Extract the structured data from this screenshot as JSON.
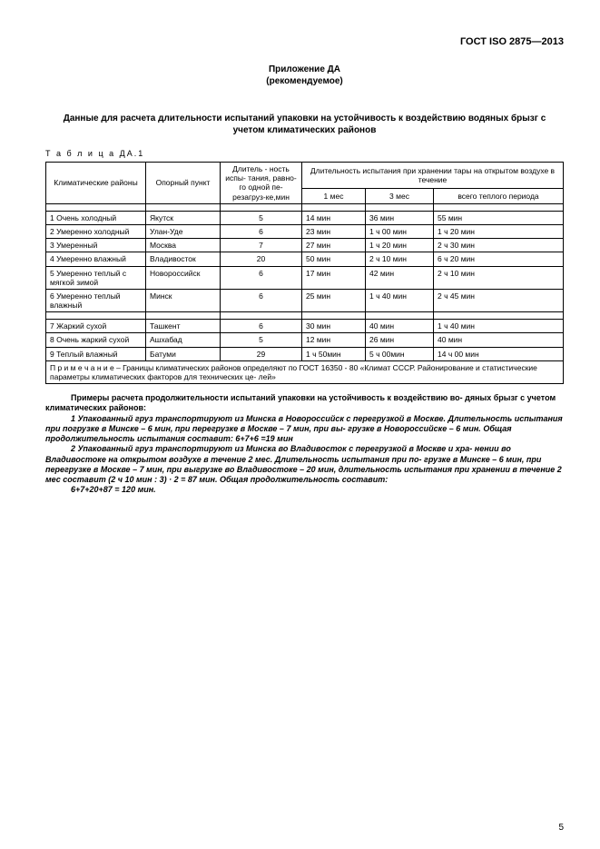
{
  "header": {
    "doc_id": "ГОСТ ISO 2875—2013",
    "appendix_label": "Приложение ДА",
    "appendix_sub": "(рекомендуемое)",
    "title": "Данные для расчета  длительности  испытаний  упаковки на устойчивость к воздействию водяных брызг  с учетом климатических районов",
    "table_label": "Т а б л и ц а   ДА.1"
  },
  "table": {
    "columns": {
      "zone": "Климатические районы",
      "point": "Опорный пункт",
      "duration": "Длитель - ность испы- тания, равно- го одной пе- резагруз-ке,мин",
      "storage_header": "Длительность испытания при хранении тары на открытом воздухе в течение",
      "m1": "1 мес",
      "m3": "3 мес",
      "warm": "всего теплого периода"
    },
    "rows": [
      {
        "n": "1",
        "zone": "Очень холодный",
        "point": "Якутск",
        "dur": "5",
        "m1": "14 мин",
        "m3": "36 мин",
        "warm": "55 мин"
      },
      {
        "n": "2",
        "zone": "Умеренно холодный",
        "point": "Улан-Уде",
        "dur": "6",
        "m1": "23 мин",
        "m3": "1 ч 00 мин",
        "warm": "1 ч 20 мин"
      },
      {
        "n": "3",
        "zone": "Умеренный",
        "point": "Москва",
        "dur": "7",
        "m1": "27 мин",
        "m3": "1 ч 20 мин",
        "warm": "2 ч 30 мин"
      },
      {
        "n": "4",
        "zone": "Умеренно влажный",
        "point": "Владивосток",
        "dur": "20",
        "m1": "50 мин",
        "m3": "2 ч 10 мин",
        "warm": "6 ч 20 мин"
      },
      {
        "n": "5",
        "zone": "Умеренно теплый с мягкой зимой",
        "point": "Новороссийск",
        "dur": "6",
        "m1": "17 мин",
        "m3": "42 мин",
        "warm": "2 ч 10 мин"
      },
      {
        "n": "6",
        "zone": "Умеренно теплый влажный",
        "point": "Минск",
        "dur": "6",
        "m1": "25 мин",
        "m3": "1 ч 40 мин",
        "warm": "2 ч 45 мин"
      },
      {
        "n": "7",
        "zone": "Жаркий сухой",
        "point": "Ташкент",
        "dur": "6",
        "m1": "30 мин",
        "m3": "40 мин",
        "warm": "1 ч 40 мин"
      },
      {
        "n": "8",
        "zone": "Очень жаркий сухой",
        "point": "Ашхабад",
        "dur": "5",
        "m1": "12 мин",
        "m3": "26 мин",
        "warm": "40 мин"
      },
      {
        "n": "9",
        "zone": "Теплый влажный",
        "point": "Батуми",
        "dur": "29",
        "m1": "1 ч  50мин",
        "m3": "5 ч 00мин",
        "warm": "14 ч 00 мин"
      }
    ],
    "note": "П р и м е ч а н и е – Границы климатических районов определяют по ГОСТ  16350 - 80 «Климат СССР. Районирование и статистические  параметры климатических факторов для технических це- лей»"
  },
  "examples": {
    "lead": "Примеры расчета продолжительности испытаний упаковки на устойчивость к воздействию во- дяных брызг с учетом климатических районов:",
    "p1": "1 Упакованный груз транспортируют из Минска в Новороссийск  с перегрузкой в Москве. Длительность испытания  при  погрузке в Минске – 6 мин, при перегрузке в Москве – 7 мин, при   вы- грузке в Новороссийске – 6 мин. Общая продолжительность  испытания  составит:  6+7+6 =19 мин",
    "p2": "2 Упакованный груз транспортируют из Минска во Владивосток с перегрузкой в Москве и хра- нении во Владивостоке на открытом воздухе в течение 2 мес.  Длительность испытания при по- грузке в Минске – 6 мин, при  перегрузке в Москве – 7 мин, при выгрузке во Владивостоке – 20 мин, длительность испытания при хранении в течение 2 мес составит  (2 ч 10 мин : 3) · 2 = 87 мин.  Общая продолжительность составит:",
    "p3": "6+7+20+87 = 120  мин."
  },
  "page_number": "5"
}
